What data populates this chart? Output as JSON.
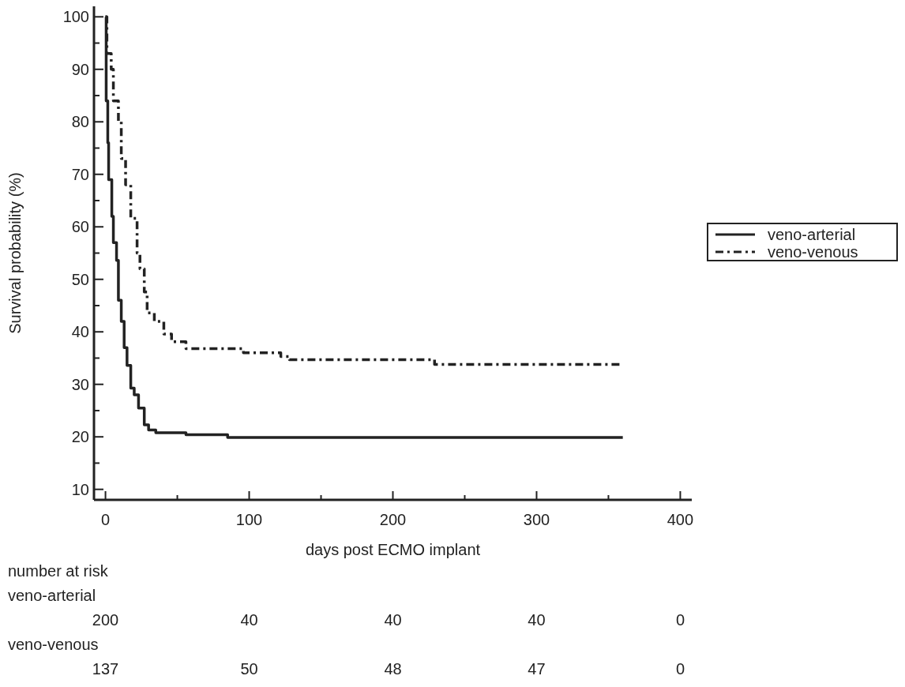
{
  "chart_data": {
    "type": "step",
    "xlabel": "days post ECMO implant",
    "ylabel": "Survival probability (%)",
    "xlim": [
      -8,
      408
    ],
    "ylim": [
      8,
      102
    ],
    "xticks": [
      0,
      {
        "value": 50,
        "label": null
      },
      100,
      {
        "value": 150,
        "label": null
      },
      200,
      {
        "value": 250,
        "label": null
      },
      300,
      {
        "value": 350,
        "label": null
      },
      400
    ],
    "yticks": [
      10,
      {
        "value": 15,
        "label": null
      },
      20,
      {
        "value": 25,
        "label": null
      },
      30,
      {
        "value": 35,
        "label": null
      },
      40,
      {
        "value": 45,
        "label": null
      },
      50,
      {
        "value": 55,
        "label": null
      },
      60,
      {
        "value": 65,
        "label": null
      },
      70,
      {
        "value": 75,
        "label": null
      },
      80,
      {
        "value": 85,
        "label": null
      },
      90,
      {
        "value": 95,
        "label": null
      },
      100
    ],
    "legend": "right",
    "grid": false,
    "series": [
      {
        "name": "veno-arterial",
        "color": "#222222",
        "line_style": "solid",
        "x": [
          0,
          0.5,
          1.6,
          2.2,
          4.4,
          5.5,
          7.7,
          9,
          11,
          13,
          15,
          17.6,
          20,
          23,
          27,
          30,
          35,
          56,
          85,
          360
        ],
        "values": [
          100,
          84,
          76,
          69,
          62,
          57,
          53.6,
          46,
          42,
          37,
          33.6,
          29.3,
          28,
          25.5,
          22.3,
          21.3,
          20.8,
          20.4,
          19.9,
          19.9
        ]
      },
      {
        "name": "veno-venous",
        "color": "#222222",
        "line_style": "dashdot",
        "x": [
          0,
          1,
          4,
          5.5,
          9,
          11,
          14,
          17.6,
          22,
          24,
          27,
          29,
          34,
          40.6,
          46,
          56,
          96,
          122,
          128,
          229,
          360
        ],
        "values": [
          100,
          93,
          90,
          84,
          80,
          73,
          68,
          61.6,
          55,
          52,
          47.6,
          43.6,
          42,
          39.6,
          38.1,
          36.8,
          36,
          35.3,
          34.7,
          33.8,
          33.8
        ]
      }
    ],
    "annotations": [
      "number at risk",
      "veno-arterial",
      "200",
      "40",
      "40",
      "40",
      "0",
      "veno-venous",
      "137",
      "50",
      "48",
      "47",
      "0"
    ]
  }
}
